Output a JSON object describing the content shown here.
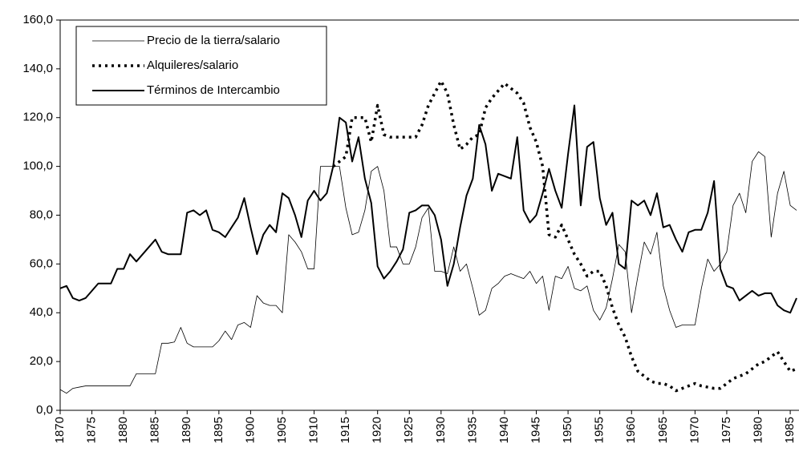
{
  "chart_data": {
    "type": "line",
    "x": [
      1870,
      1871,
      1872,
      1873,
      1874,
      1875,
      1876,
      1877,
      1878,
      1879,
      1880,
      1881,
      1882,
      1883,
      1884,
      1885,
      1886,
      1887,
      1888,
      1889,
      1890,
      1891,
      1892,
      1893,
      1894,
      1895,
      1896,
      1897,
      1898,
      1899,
      1900,
      1901,
      1902,
      1903,
      1904,
      1905,
      1906,
      1907,
      1908,
      1909,
      1910,
      1911,
      1912,
      1913,
      1914,
      1915,
      1916,
      1917,
      1918,
      1919,
      1920,
      1921,
      1922,
      1923,
      1924,
      1925,
      1926,
      1927,
      1928,
      1929,
      1930,
      1931,
      1932,
      1933,
      1934,
      1935,
      1936,
      1937,
      1938,
      1939,
      1940,
      1941,
      1942,
      1943,
      1944,
      1945,
      1946,
      1947,
      1948,
      1949,
      1950,
      1951,
      1952,
      1953,
      1954,
      1955,
      1956,
      1957,
      1958,
      1959,
      1960,
      1961,
      1962,
      1963,
      1964,
      1965,
      1966,
      1967,
      1968,
      1969,
      1970,
      1971,
      1972,
      1973,
      1974,
      1975,
      1976,
      1977,
      1978,
      1979,
      1980,
      1981,
      1982,
      1983,
      1984,
      1985,
      1986
    ],
    "series": [
      {
        "name": "Precio de la tierra/salario",
        "color": "#000000",
        "values": [
          8.5,
          7,
          9,
          9.5,
          10,
          10,
          10,
          10,
          10,
          10,
          10,
          10,
          15,
          15,
          15,
          15,
          27.5,
          27.5,
          28,
          34,
          27.5,
          26,
          26,
          26,
          26,
          28.5,
          32.5,
          29,
          35,
          36,
          34,
          47,
          44,
          43,
          43,
          40,
          72,
          69,
          65,
          58,
          58,
          100,
          100,
          100,
          100,
          83,
          72,
          73,
          82,
          98,
          100,
          90,
          67,
          67,
          60,
          60,
          67,
          79,
          83,
          57,
          57,
          56,
          67,
          57,
          60,
          50,
          39,
          41,
          50,
          52,
          55,
          56,
          55,
          54,
          57,
          52,
          55,
          41,
          55,
          54,
          59,
          50,
          49,
          51,
          41,
          37,
          42,
          54,
          68,
          65,
          40,
          55,
          69,
          64,
          73,
          51,
          41,
          34,
          35,
          35,
          35,
          50,
          62,
          57,
          60,
          65,
          84,
          89,
          81,
          102,
          106,
          104,
          71,
          89,
          98,
          84,
          82
        ]
      },
      {
        "name": "Alquileres/salario",
        "color": "#000000",
        "values": [
          null,
          null,
          null,
          null,
          null,
          null,
          null,
          null,
          null,
          null,
          null,
          null,
          null,
          null,
          null,
          null,
          null,
          null,
          null,
          null,
          null,
          null,
          null,
          null,
          null,
          null,
          null,
          null,
          null,
          null,
          null,
          null,
          null,
          null,
          null,
          null,
          null,
          null,
          null,
          null,
          null,
          null,
          null,
          100,
          102,
          104,
          120,
          120,
          120,
          110,
          125,
          113,
          112,
          112,
          112,
          112,
          112,
          117,
          125,
          130,
          135,
          130,
          117,
          107,
          109,
          112,
          113,
          124,
          128,
          131,
          134,
          132,
          130,
          126,
          116,
          110,
          100,
          72,
          71,
          76,
          70,
          64,
          60,
          55,
          57,
          57,
          51,
          42,
          35,
          30,
          22,
          16,
          14,
          12,
          11,
          11,
          10,
          8,
          9,
          10,
          11,
          10,
          9.5,
          9,
          9,
          11,
          13,
          14,
          15,
          17,
          19,
          20,
          22,
          24,
          20,
          16,
          17
        ]
      },
      {
        "name": "Términos de Intercambio",
        "color": "#000000",
        "values": [
          50,
          51,
          46,
          45,
          46,
          49,
          52,
          52,
          52,
          58,
          58,
          64,
          61,
          64,
          67,
          70,
          65,
          64,
          64,
          64,
          81,
          82,
          80,
          82,
          74,
          73,
          71,
          75,
          79,
          87,
          75,
          64,
          72,
          76,
          73,
          89,
          87,
          80,
          71,
          86,
          90,
          86,
          89,
          100,
          120,
          118,
          102,
          112,
          95,
          85,
          59,
          54,
          57,
          61,
          66,
          81,
          82,
          84,
          84,
          80,
          70,
          51,
          60,
          75,
          88,
          95,
          117,
          109,
          90,
          97,
          96,
          95,
          112,
          82,
          77,
          80,
          89,
          99,
          90,
          83,
          105,
          125,
          84,
          108,
          110,
          87,
          76,
          81,
          60,
          58,
          86,
          84,
          86,
          80,
          89,
          75,
          76,
          70,
          65,
          73,
          74,
          74,
          81,
          94,
          58,
          51,
          50,
          45,
          47,
          49,
          47,
          48,
          48,
          43,
          41,
          40,
          46
        ]
      }
    ],
    "xlim": [
      1870,
      1986
    ],
    "xticks": [
      1870,
      1875,
      1880,
      1885,
      1890,
      1895,
      1900,
      1905,
      1910,
      1915,
      1920,
      1925,
      1930,
      1935,
      1940,
      1945,
      1950,
      1955,
      1960,
      1965,
      1970,
      1975,
      1980,
      1985
    ],
    "ylim": [
      0,
      160
    ],
    "yticks": [
      {
        "value": 0,
        "label": "0,0"
      },
      {
        "value": 20,
        "label": "20,0"
      },
      {
        "value": 40,
        "label": "40,0"
      },
      {
        "value": 60,
        "label": "60,0"
      },
      {
        "value": 80,
        "label": "80,0"
      },
      {
        "value": 100,
        "label": "100,0"
      },
      {
        "value": 120,
        "label": "120,0"
      },
      {
        "value": 140,
        "label": "140,0"
      },
      {
        "value": 160,
        "label": "160,0"
      }
    ],
    "grid": false,
    "legend": "top-left"
  }
}
